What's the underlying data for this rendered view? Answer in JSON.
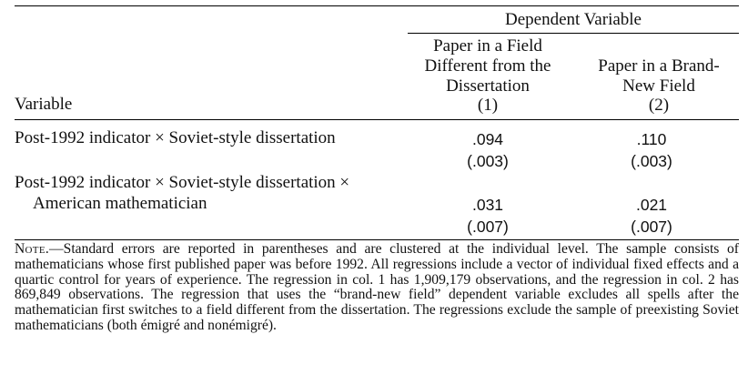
{
  "table": {
    "dependent_variable_header": "Dependent Variable",
    "variable_header": "Variable",
    "columns": [
      {
        "label_lines": [
          "Paper in a Field",
          "Different from the",
          "Dissertation"
        ],
        "number": "(1)"
      },
      {
        "label_lines": [
          "Paper in a Brand-",
          "New Field"
        ],
        "number": "(2)"
      }
    ],
    "rows": [
      {
        "label_lines": [
          "Post-1992 indicator × Soviet-style dissertation"
        ],
        "coefficients": [
          ".094",
          ".110"
        ],
        "std_errors": [
          "(.003)",
          "(.003)"
        ]
      },
      {
        "label_lines": [
          "Post-1992 indicator × Soviet-style dissertation ×",
          "American mathematician"
        ],
        "coefficients": [
          ".031",
          ".021"
        ],
        "std_errors": [
          "(.007)",
          "(.007)"
        ]
      }
    ]
  },
  "note": {
    "label": "Note.",
    "dash": "—",
    "text": "Standard errors are reported in parentheses and are clustered at the individual level. The sample consists of mathematicians whose first published paper was before 1992. All regressions include a vector of individual fixed effects and a quartic control for years of experience. The regression in col. 1 has 1,909,179 observations, and the regression in col. 2 has 869,849 observations. The regression that uses the “brand-new field” dependent variable excludes all spells after the mathematician first switches to a field different from the dissertation. The regressions exclude the sample of preexisting Soviet mathematicians (both émigré and nonémigré)."
  }
}
